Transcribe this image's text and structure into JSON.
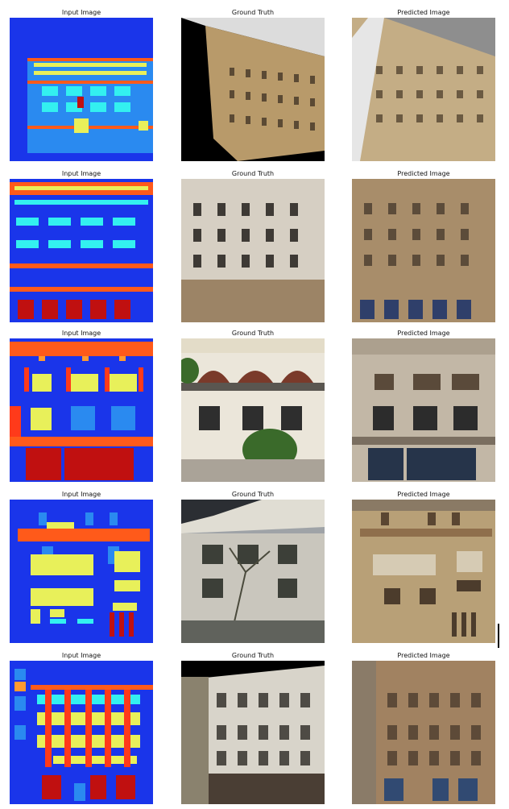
{
  "rows": [
    {
      "captions": [
        "Input Image",
        "Ground Truth",
        "Predicted Image"
      ]
    },
    {
      "captions": [
        "Input Image",
        "Ground Truth",
        "Predicted Image"
      ]
    },
    {
      "captions": [
        "Input Image",
        "Ground Truth",
        "Predicted Image"
      ]
    },
    {
      "captions": [
        "Input Image",
        "Ground Truth",
        "Predicted Image"
      ]
    },
    {
      "captions": [
        "Input Image",
        "Ground Truth",
        "Predicted Image"
      ]
    }
  ],
  "colors": {
    "label_bg": "#1a35ea",
    "label_cyan": "#33f0f0",
    "label_yellow": "#e8f05a",
    "label_orange": "#ff5a1a",
    "label_red": "#c01010",
    "label_blue": "#2a8af0",
    "facade_tan": "#b89a6a",
    "facade_gray": "#8d8d86"
  }
}
